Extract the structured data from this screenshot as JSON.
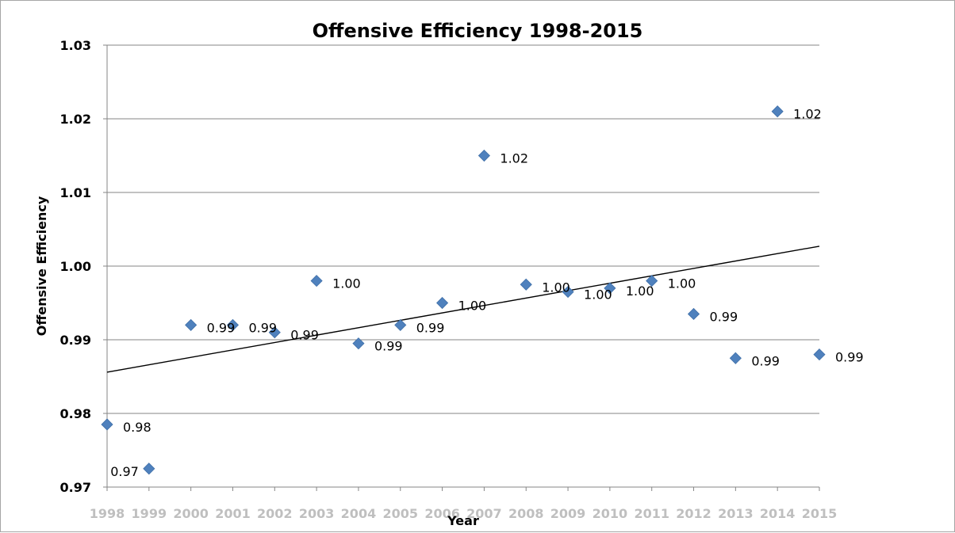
{
  "chart_data": {
    "type": "scatter",
    "title": "Offensive Efficiency 1998-2015",
    "xlabel": "Year",
    "ylabel": "Offensive Efficiency",
    "ylim": [
      0.97,
      1.03
    ],
    "ytick_labels": [
      "0.97",
      "0.98",
      "0.99",
      "1.00",
      "1.01",
      "1.02",
      "1.03"
    ],
    "ytick_values": [
      0.97,
      0.98,
      0.99,
      1.0,
      1.01,
      1.02,
      1.03
    ],
    "x": [
      1998,
      1999,
      2000,
      2001,
      2002,
      2003,
      2004,
      2005,
      2006,
      2007,
      2008,
      2009,
      2010,
      2011,
      2012,
      2013,
      2014,
      2015
    ],
    "xtick_labels": [
      "1998",
      "1999",
      "2000",
      "2001",
      "2002",
      "2003",
      "2004",
      "2005",
      "2006",
      "2007",
      "2008",
      "2009",
      "2010",
      "2011",
      "2012",
      "2013",
      "2014",
      "2015"
    ],
    "series": [
      {
        "values": [
          0.9785,
          0.9725,
          0.992,
          0.992,
          0.991,
          0.998,
          0.9895,
          0.992,
          0.995,
          1.015,
          0.9975,
          0.9965,
          0.997,
          0.998,
          0.9935,
          0.9875,
          1.021,
          0.988
        ],
        "data_labels": [
          "0.98",
          "0.97",
          "0.99",
          "0.99",
          "0.99",
          "1.00",
          "0.99",
          "0.99",
          "1.00",
          "1.02",
          "1.00",
          "1.00",
          "1.00",
          "1.00",
          "0.99",
          "0.99",
          "1.02",
          "0.99"
        ],
        "color": "#4f81bd",
        "marker": "diamond"
      }
    ],
    "trendline": {
      "type": "linear",
      "start": [
        1998,
        0.9856
      ],
      "end": [
        2015,
        1.0027
      ],
      "color": "#000000"
    },
    "grid": true,
    "legend": "none"
  }
}
